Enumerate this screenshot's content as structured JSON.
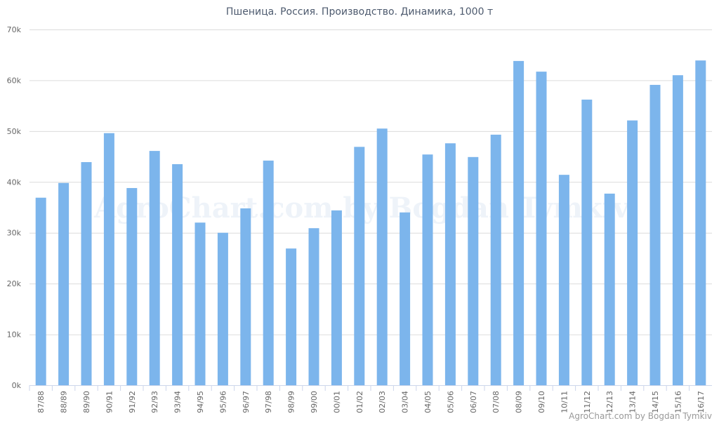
{
  "chart_data": {
    "type": "bar",
    "title": "Пшеница. Россия. Производство. Динамика, 1000 т",
    "watermark": "AgroChart.com by Bogdan Tymkiv",
    "credit": "AgroChart.com by Bogdan Tymkiv",
    "categories": [
      "87/88",
      "88/89",
      "89/90",
      "90/91",
      "91/92",
      "92/93",
      "93/94",
      "94/95",
      "95/96",
      "96/97",
      "97/98",
      "98/99",
      "99/00",
      "00/01",
      "01/02",
      "02/03",
      "03/04",
      "04/05",
      "05/06",
      "06/07",
      "07/08",
      "08/09",
      "09/10",
      "10/11",
      "11/12",
      "12/13",
      "13/14",
      "14/15",
      "15/16",
      "16/17"
    ],
    "values": [
      36900,
      39800,
      43900,
      49600,
      38800,
      46100,
      43500,
      32000,
      30000,
      34800,
      44200,
      26900,
      30900,
      34400,
      46900,
      50500,
      34000,
      45400,
      47600,
      44900,
      49300,
      63800,
      61700,
      41400,
      56200,
      37700,
      52100,
      59100,
      61000,
      63900
    ],
    "color": "#7cb5ec",
    "ylim": [
      0,
      70000
    ],
    "yticks": [
      {
        "value": 0,
        "label": "0k"
      },
      {
        "value": 10000,
        "label": "10k"
      },
      {
        "value": 20000,
        "label": "20k"
      },
      {
        "value": 30000,
        "label": "30k"
      },
      {
        "value": 40000,
        "label": "40k"
      },
      {
        "value": 50000,
        "label": "50k"
      },
      {
        "value": 60000,
        "label": "60k"
      },
      {
        "value": 70000,
        "label": "70k"
      }
    ],
    "grid": true
  }
}
